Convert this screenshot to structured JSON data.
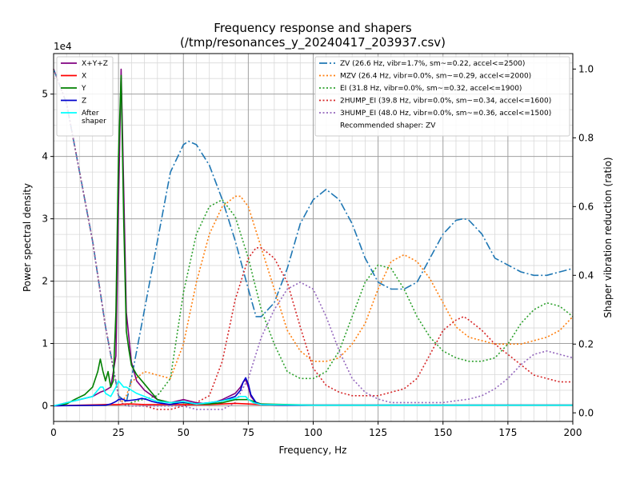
{
  "chart_data": {
    "type": "line",
    "title": "Frequency response and shapers",
    "subtitle": "(/tmp/resonances_y_20240417_203937.csv)",
    "xlabel": "Frequency, Hz",
    "ylabel": "Power spectral density",
    "ylabel_right": "Shaper vibration reduction (ratio)",
    "y_offset_label": "1e4",
    "xlim": [
      0,
      200
    ],
    "ylim": [
      -0.25,
      5.65
    ],
    "y2lim": [
      -0.025,
      1.045
    ],
    "grid": true,
    "x_ticks": [
      "0",
      "25",
      "50",
      "75",
      "100",
      "125",
      "150",
      "175",
      "200"
    ],
    "y_ticks": [
      "0",
      "1",
      "2",
      "3",
      "4",
      "5"
    ],
    "y2_ticks": [
      "0.0",
      "0.2",
      "0.4",
      "0.6",
      "0.8",
      "1.0"
    ],
    "legend_left_position": "top-left",
    "legend_right_position": "top-right",
    "psd_series": [
      {
        "name": "X+Y+Z",
        "color": "#800080",
        "style": "solid",
        "x": [
          0,
          5,
          10,
          15,
          18,
          20,
          22,
          24,
          25,
          26,
          27,
          28,
          30,
          32,
          35,
          40,
          45,
          50,
          52,
          55,
          60,
          65,
          70,
          72,
          73,
          74,
          75,
          76,
          78,
          80,
          90,
          100,
          120,
          150,
          200
        ],
        "y": [
          0,
          0.05,
          0.1,
          0.15,
          0.22,
          0.25,
          0.3,
          0.8,
          3.2,
          5.4,
          3.5,
          1.5,
          0.7,
          0.4,
          0.25,
          0.1,
          0.05,
          0.1,
          0.08,
          0.05,
          0.03,
          0.1,
          0.2,
          0.3,
          0.38,
          0.42,
          0.3,
          0.15,
          0.05,
          0.02,
          0.01,
          0.01,
          0.01,
          0.01,
          0.01
        ]
      },
      {
        "name": "X",
        "color": "#ff0000",
        "style": "solid",
        "x": [
          0,
          10,
          20,
          25,
          28,
          30,
          35,
          40,
          50,
          60,
          70,
          75,
          80,
          100,
          150,
          200
        ],
        "y": [
          0,
          0.01,
          0.02,
          0.02,
          0.03,
          0.03,
          0.02,
          0.02,
          0.02,
          0.02,
          0.04,
          0.03,
          0.02,
          0.01,
          0.01,
          0.01
        ]
      },
      {
        "name": "Y",
        "color": "#008000",
        "style": "solid",
        "x": [
          0,
          5,
          8,
          12,
          15,
          17,
          18,
          19,
          20,
          21,
          22,
          23,
          24,
          25,
          26,
          27,
          28,
          29,
          30,
          32,
          35,
          38,
          40,
          45,
          50,
          55,
          60,
          65,
          70,
          75,
          80,
          100,
          150,
          200
        ],
        "y": [
          0,
          0.03,
          0.1,
          0.18,
          0.3,
          0.55,
          0.75,
          0.55,
          0.4,
          0.55,
          0.3,
          0.4,
          1.5,
          4.0,
          5.3,
          3.0,
          1.2,
          0.9,
          0.65,
          0.5,
          0.35,
          0.2,
          0.1,
          0.05,
          0.05,
          0.03,
          0.03,
          0.05,
          0.1,
          0.1,
          0.03,
          0.01,
          0.01,
          0.01
        ]
      },
      {
        "name": "Z",
        "color": "#0000cc",
        "style": "solid",
        "x": [
          0,
          10,
          20,
          22,
          24,
          25,
          26,
          27,
          28,
          30,
          32,
          34,
          36,
          38,
          40,
          45,
          50,
          55,
          60,
          65,
          70,
          72,
          73,
          74,
          75,
          76,
          78,
          80,
          90,
          100,
          150,
          200
        ],
        "y": [
          0,
          0.005,
          0.01,
          0.03,
          0.07,
          0.1,
          0.11,
          0.1,
          0.08,
          0.09,
          0.1,
          0.12,
          0.1,
          0.07,
          0.05,
          0.02,
          0.06,
          0.03,
          0.05,
          0.08,
          0.15,
          0.25,
          0.38,
          0.45,
          0.35,
          0.18,
          0.05,
          0.02,
          0.01,
          0.01,
          0.01,
          0.01
        ]
      },
      {
        "name": "After\nshaper",
        "color": "#00ffff",
        "style": "solid",
        "x": [
          0,
          5,
          10,
          15,
          18,
          19,
          20,
          22,
          24,
          25,
          26,
          27,
          28,
          30,
          32,
          35,
          38,
          40,
          45,
          50,
          55,
          60,
          65,
          70,
          72,
          74,
          75,
          77,
          80,
          100,
          150,
          200
        ],
        "y": [
          0,
          0.05,
          0.1,
          0.15,
          0.3,
          0.3,
          0.2,
          0.15,
          0.3,
          0.4,
          0.35,
          0.3,
          0.3,
          0.25,
          0.2,
          0.15,
          0.1,
          0.07,
          0.05,
          0.07,
          0.03,
          0.05,
          0.08,
          0.12,
          0.15,
          0.15,
          0.1,
          0.05,
          0.02,
          0.01,
          0.01,
          0.01
        ]
      }
    ],
    "shaper_series": [
      {
        "name": "ZV (26.6 Hz, vibr=1.7%, sm~=0.22, accel<=2500)",
        "color": "#1f77b4",
        "style": "dashdot",
        "x": [
          0,
          5,
          10,
          15,
          20,
          25,
          28,
          30,
          35,
          40,
          45,
          50,
          52,
          55,
          60,
          65,
          70,
          75,
          78,
          80,
          85,
          90,
          95,
          100,
          105,
          110,
          115,
          120,
          125,
          130,
          135,
          140,
          145,
          150,
          155,
          158,
          160,
          165,
          170,
          175,
          180,
          185,
          190,
          195,
          200
        ],
        "y": [
          1.0,
          0.9,
          0.7,
          0.5,
          0.25,
          0.05,
          0.03,
          0.1,
          0.3,
          0.5,
          0.7,
          0.78,
          0.79,
          0.78,
          0.72,
          0.62,
          0.5,
          0.36,
          0.28,
          0.28,
          0.32,
          0.42,
          0.55,
          0.62,
          0.65,
          0.62,
          0.55,
          0.45,
          0.38,
          0.36,
          0.36,
          0.38,
          0.45,
          0.52,
          0.56,
          0.565,
          0.56,
          0.52,
          0.45,
          0.43,
          0.41,
          0.4,
          0.4,
          0.41,
          0.42
        ]
      },
      {
        "name": "MZV (26.4 Hz, vibr=0.0%, sm~=0.29, accel<=2000)",
        "color": "#ff7f0e",
        "style": "dotted",
        "x": [
          0,
          5,
          10,
          15,
          20,
          25,
          26,
          28,
          30,
          35,
          40,
          45,
          50,
          55,
          60,
          65,
          70,
          72,
          75,
          80,
          85,
          90,
          95,
          100,
          105,
          110,
          115,
          120,
          125,
          130,
          135,
          140,
          145,
          150,
          155,
          160,
          165,
          170,
          175,
          180,
          185,
          190,
          195,
          200
        ],
        "y": [
          1.0,
          0.9,
          0.7,
          0.5,
          0.25,
          0.05,
          0.03,
          0.05,
          0.09,
          0.12,
          0.11,
          0.1,
          0.2,
          0.38,
          0.52,
          0.6,
          0.63,
          0.63,
          0.6,
          0.48,
          0.36,
          0.24,
          0.18,
          0.15,
          0.15,
          0.16,
          0.2,
          0.26,
          0.36,
          0.44,
          0.46,
          0.44,
          0.39,
          0.32,
          0.25,
          0.22,
          0.21,
          0.2,
          0.2,
          0.2,
          0.21,
          0.22,
          0.24,
          0.28
        ]
      },
      {
        "name": "EI (31.8 Hz, vibr=0.0%, sm~=0.32, accel<=1900)",
        "color": "#2ca02c",
        "style": "dotted",
        "x": [
          0,
          5,
          10,
          15,
          20,
          25,
          26,
          28,
          30,
          35,
          40,
          45,
          50,
          55,
          60,
          65,
          70,
          75,
          80,
          85,
          90,
          95,
          100,
          105,
          110,
          115,
          120,
          125,
          130,
          135,
          140,
          145,
          150,
          155,
          160,
          165,
          170,
          175,
          180,
          185,
          190,
          195,
          200
        ],
        "y": [
          1.0,
          0.9,
          0.7,
          0.5,
          0.25,
          0.05,
          0.03,
          0.02,
          0.03,
          0.04,
          0.05,
          0.1,
          0.35,
          0.52,
          0.6,
          0.62,
          0.57,
          0.45,
          0.3,
          0.2,
          0.12,
          0.1,
          0.1,
          0.12,
          0.18,
          0.28,
          0.38,
          0.43,
          0.42,
          0.36,
          0.28,
          0.22,
          0.18,
          0.16,
          0.15,
          0.15,
          0.16,
          0.2,
          0.26,
          0.3,
          0.32,
          0.31,
          0.28
        ]
      },
      {
        "name": "2HUMP_EI (39.8 Hz, vibr=0.0%, sm~=0.34, accel<=1600)",
        "color": "#d62728",
        "style": "dotted",
        "x": [
          0,
          5,
          10,
          15,
          20,
          25,
          26,
          28,
          30,
          35,
          40,
          45,
          50,
          55,
          60,
          65,
          70,
          75,
          78,
          80,
          85,
          90,
          95,
          100,
          105,
          110,
          115,
          120,
          125,
          130,
          135,
          140,
          145,
          150,
          155,
          158,
          160,
          165,
          170,
          175,
          180,
          185,
          190,
          195,
          200
        ],
        "y": [
          1.0,
          0.9,
          0.7,
          0.5,
          0.25,
          0.05,
          0.03,
          0.02,
          0.02,
          0.02,
          0.01,
          0.01,
          0.02,
          0.03,
          0.05,
          0.15,
          0.33,
          0.45,
          0.48,
          0.48,
          0.45,
          0.38,
          0.25,
          0.13,
          0.08,
          0.06,
          0.05,
          0.05,
          0.05,
          0.06,
          0.07,
          0.1,
          0.17,
          0.24,
          0.27,
          0.28,
          0.27,
          0.24,
          0.2,
          0.17,
          0.14,
          0.11,
          0.1,
          0.09,
          0.09
        ]
      },
      {
        "name": "3HUMP_EI (48.0 Hz, vibr=0.0%, sm~=0.36, accel<=1500)",
        "color": "#9467bd",
        "style": "dotted",
        "x": [
          0,
          5,
          10,
          15,
          20,
          25,
          26,
          28,
          30,
          35,
          40,
          45,
          50,
          55,
          60,
          65,
          70,
          75,
          80,
          85,
          90,
          95,
          100,
          105,
          110,
          115,
          120,
          125,
          130,
          135,
          140,
          145,
          150,
          155,
          160,
          165,
          170,
          175,
          180,
          185,
          190,
          195,
          200
        ],
        "y": [
          1.0,
          0.9,
          0.7,
          0.5,
          0.25,
          0.05,
          0.03,
          0.02,
          0.02,
          0.02,
          0.02,
          0.02,
          0.02,
          0.01,
          0.01,
          0.01,
          0.03,
          0.1,
          0.22,
          0.3,
          0.36,
          0.38,
          0.36,
          0.28,
          0.18,
          0.1,
          0.06,
          0.04,
          0.03,
          0.03,
          0.03,
          0.03,
          0.03,
          0.035,
          0.04,
          0.05,
          0.07,
          0.1,
          0.14,
          0.17,
          0.18,
          0.17,
          0.16
        ]
      }
    ],
    "right_legend_extra": "Recommended shaper: ZV"
  }
}
